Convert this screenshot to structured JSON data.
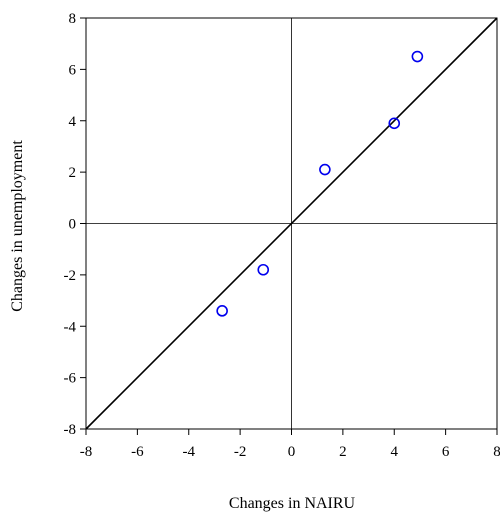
{
  "chart_data": {
    "type": "scatter",
    "title": "",
    "xlabel": "Changes in NAIRU",
    "ylabel": "Changes in unemployment",
    "xlim": [
      -8,
      8
    ],
    "ylim": [
      -8,
      8
    ],
    "x_ticks": [
      "-8",
      "-6",
      "-4",
      "-2",
      "0",
      "2",
      "4",
      "6",
      "8"
    ],
    "y_ticks": [
      "8",
      "6",
      "4",
      "2",
      "0",
      "-2",
      "-4",
      "-6",
      "-8"
    ],
    "x_tick_values": [
      -8,
      -6,
      -4,
      -2,
      0,
      2,
      4,
      6,
      8
    ],
    "y_tick_values": [
      8,
      6,
      4,
      2,
      0,
      -2,
      -4,
      -6,
      -8
    ],
    "reference_lines": {
      "zero_lines": true,
      "diagonal_45": true
    },
    "grid": false,
    "marker": "open-circle",
    "marker_color": "#0000ee",
    "line_color": "#000000",
    "points": [
      {
        "x": -2.7,
        "y": -3.4
      },
      {
        "x": -1.1,
        "y": -1.8
      },
      {
        "x": 1.3,
        "y": 2.1
      },
      {
        "x": 4.0,
        "y": 3.9
      },
      {
        "x": 4.9,
        "y": 6.5
      }
    ]
  }
}
